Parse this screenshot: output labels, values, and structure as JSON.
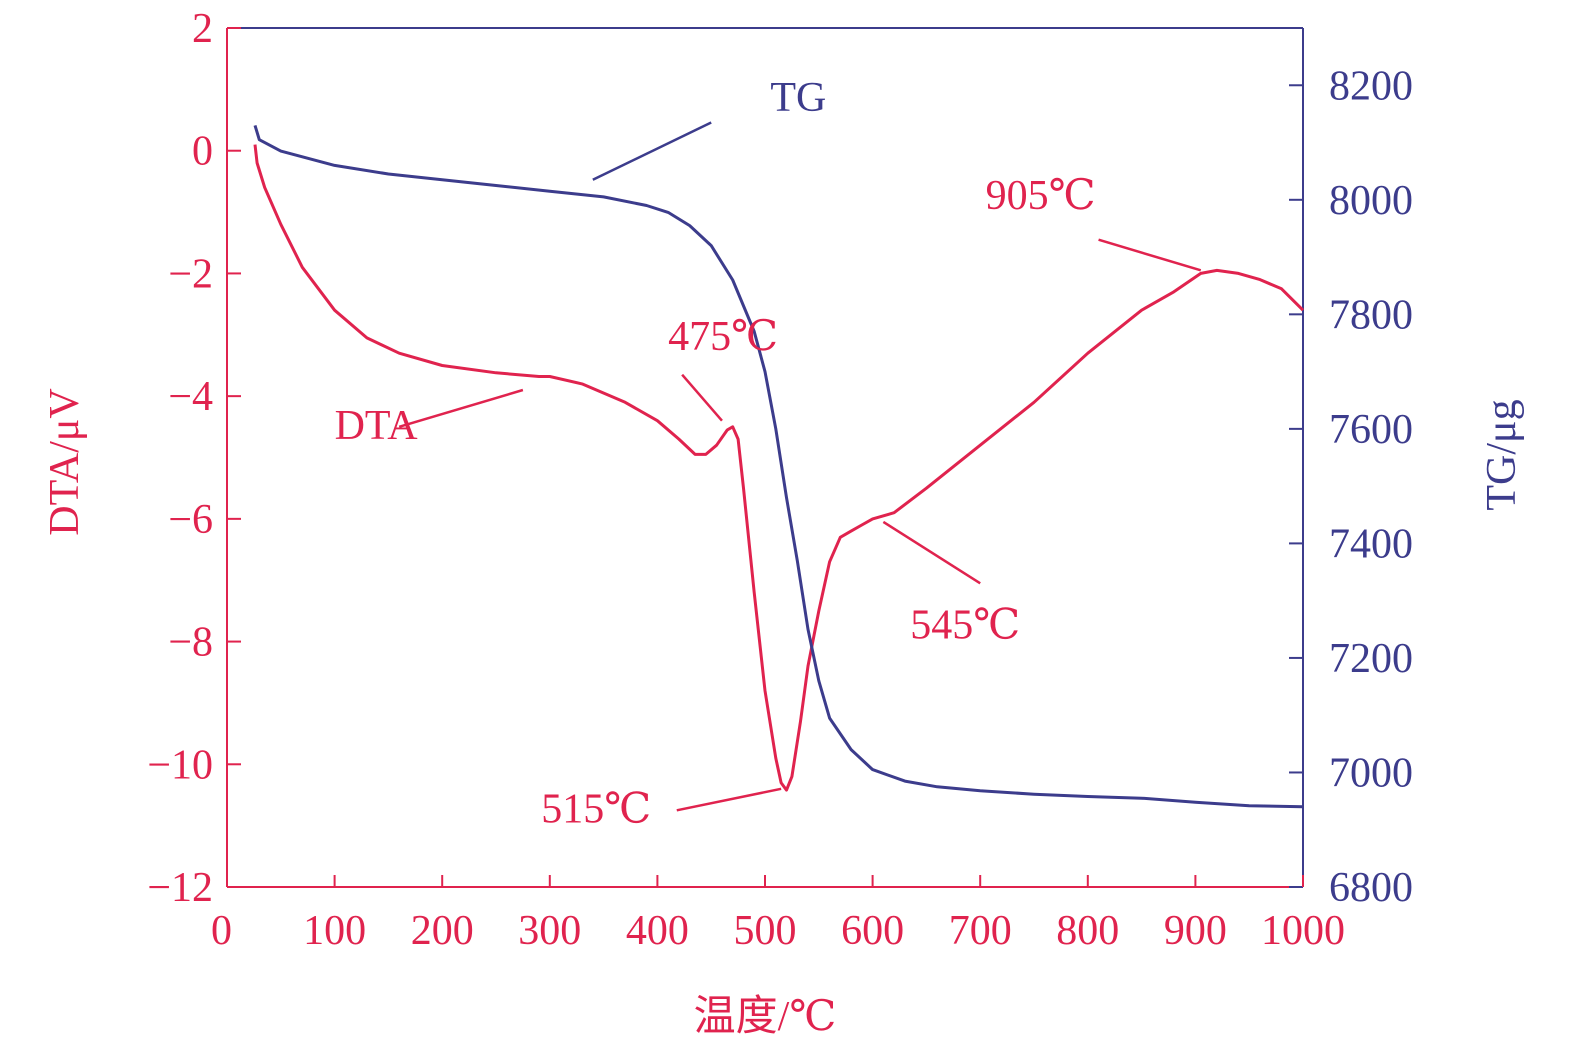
{
  "colors": {
    "dta": "#e0234e",
    "tg": "#3c3c8c",
    "axis": "#e0234e",
    "frame": "#3c3c8c"
  },
  "chart_data": {
    "type": "line",
    "x": {
      "label": "温度/℃",
      "range": [
        0,
        1000
      ],
      "ticks": [
        "0",
        "100",
        "200",
        "300",
        "400",
        "500",
        "600",
        "700",
        "800",
        "900",
        "1000"
      ]
    },
    "y_left": {
      "label": "DTA/μV",
      "range": [
        -12,
        2
      ],
      "ticks": [
        "2",
        "0",
        "−2",
        "−4",
        "−6",
        "−8",
        "−10",
        "−12"
      ]
    },
    "y_right": {
      "label": "TG/μg",
      "range": [
        6800,
        8300
      ],
      "ticks": [
        "8200",
        "8000",
        "7800",
        "7600",
        "7400",
        "7200",
        "7000",
        "6800"
      ]
    },
    "series": [
      {
        "name": "DTA",
        "axis": "left",
        "points": [
          [
            26,
            0.1
          ],
          [
            28,
            -0.2
          ],
          [
            35,
            -0.6
          ],
          [
            50,
            -1.2
          ],
          [
            70,
            -1.9
          ],
          [
            100,
            -2.6
          ],
          [
            130,
            -3.05
          ],
          [
            160,
            -3.3
          ],
          [
            200,
            -3.5
          ],
          [
            250,
            -3.62
          ],
          [
            290,
            -3.68
          ],
          [
            300,
            -3.68
          ],
          [
            330,
            -3.8
          ],
          [
            370,
            -4.1
          ],
          [
            400,
            -4.4
          ],
          [
            420,
            -4.7
          ],
          [
            435,
            -4.95
          ],
          [
            445,
            -4.95
          ],
          [
            455,
            -4.8
          ],
          [
            465,
            -4.55
          ],
          [
            470,
            -4.5
          ],
          [
            475,
            -4.7
          ],
          [
            480,
            -5.5
          ],
          [
            490,
            -7.2
          ],
          [
            500,
            -8.8
          ],
          [
            510,
            -9.9
          ],
          [
            515,
            -10.3
          ],
          [
            520,
            -10.42
          ],
          [
            525,
            -10.2
          ],
          [
            533,
            -9.3
          ],
          [
            540,
            -8.4
          ],
          [
            550,
            -7.5
          ],
          [
            560,
            -6.7
          ],
          [
            570,
            -6.3
          ],
          [
            580,
            -6.2
          ],
          [
            590,
            -6.1
          ],
          [
            600,
            -6.0
          ],
          [
            620,
            -5.9
          ],
          [
            650,
            -5.5
          ],
          [
            700,
            -4.8
          ],
          [
            750,
            -4.1
          ],
          [
            800,
            -3.3
          ],
          [
            850,
            -2.6
          ],
          [
            880,
            -2.3
          ],
          [
            905,
            -2.0
          ],
          [
            920,
            -1.95
          ],
          [
            940,
            -2.0
          ],
          [
            960,
            -2.1
          ],
          [
            980,
            -2.25
          ],
          [
            1000,
            -2.6
          ]
        ]
      },
      {
        "name": "TG",
        "axis": "right",
        "points": [
          [
            26,
            8130
          ],
          [
            30,
            8105
          ],
          [
            50,
            8085
          ],
          [
            100,
            8060
          ],
          [
            150,
            8045
          ],
          [
            200,
            8035
          ],
          [
            250,
            8025
          ],
          [
            300,
            8015
          ],
          [
            350,
            8005
          ],
          [
            390,
            7990
          ],
          [
            410,
            7978
          ],
          [
            430,
            7955
          ],
          [
            450,
            7920
          ],
          [
            470,
            7860
          ],
          [
            490,
            7770
          ],
          [
            500,
            7700
          ],
          [
            510,
            7600
          ],
          [
            520,
            7480
          ],
          [
            530,
            7370
          ],
          [
            540,
            7250
          ],
          [
            550,
            7160
          ],
          [
            560,
            7095
          ],
          [
            580,
            7040
          ],
          [
            600,
            7005
          ],
          [
            630,
            6985
          ],
          [
            660,
            6975
          ],
          [
            700,
            6968
          ],
          [
            750,
            6962
          ],
          [
            800,
            6958
          ],
          [
            850,
            6955
          ],
          [
            900,
            6948
          ],
          [
            950,
            6942
          ],
          [
            1000,
            6940
          ]
        ]
      }
    ],
    "annotations": [
      {
        "text": "TG",
        "color": "tg",
        "at": [
          505,
          8155
        ],
        "from": [
          450,
          8135
        ],
        "to": [
          340,
          8035
        ],
        "axis": "right"
      },
      {
        "text": "DTA",
        "color": "dta",
        "at": [
          100,
          -4.7
        ],
        "from": [
          160,
          -4.5
        ],
        "to": [
          275,
          -3.9
        ],
        "axis": "left"
      },
      {
        "text": "475℃",
        "color": "dta",
        "at": [
          410,
          -3.25
        ],
        "from": [
          423,
          -3.65
        ],
        "to": [
          460,
          -4.4
        ],
        "axis": "left"
      },
      {
        "text": "515℃",
        "color": "dta",
        "at": [
          292,
          -10.95
        ],
        "from": [
          418,
          -10.75
        ],
        "to": [
          515,
          -10.4
        ],
        "axis": "left"
      },
      {
        "text": "545℃",
        "color": "dta",
        "at": [
          635,
          -7.95
        ],
        "from": [
          700,
          -7.05
        ],
        "to": [
          610,
          -6.05
        ],
        "axis": "left"
      },
      {
        "text": "905℃",
        "color": "dta",
        "at": [
          705,
          -0.95
        ],
        "from": [
          810,
          -1.45
        ],
        "to": [
          905,
          -1.95
        ],
        "axis": "left"
      }
    ]
  }
}
